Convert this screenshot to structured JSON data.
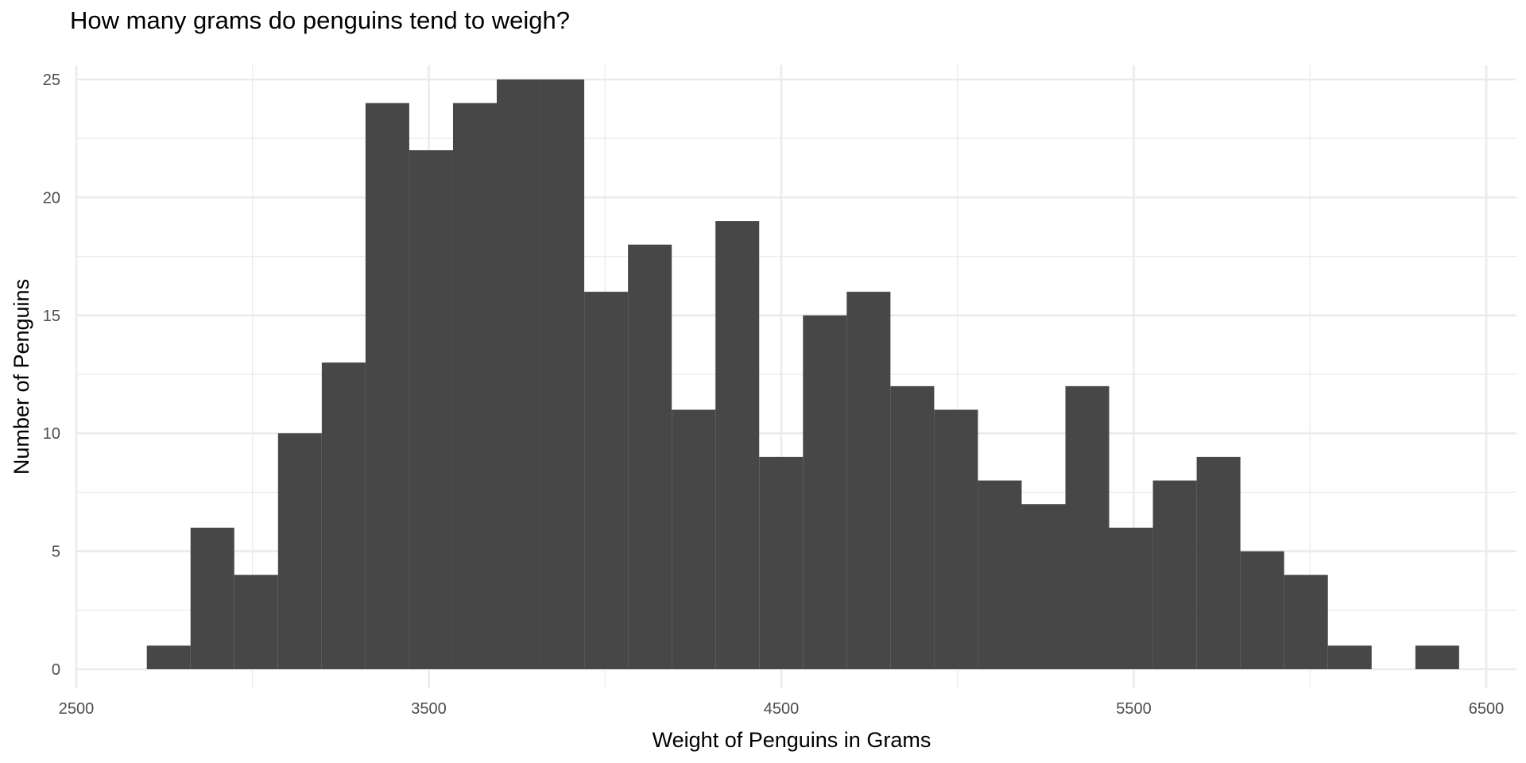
{
  "chart_data": {
    "type": "bar",
    "subtype": "histogram",
    "title": "How many grams do penguins tend to weigh?",
    "xlabel": "Weight of Penguins in Grams",
    "ylabel": "Number of Penguins",
    "xlim": [
      2500,
      6500
    ],
    "ylim": [
      0,
      25
    ],
    "x_ticks": [
      2500,
      3500,
      4500,
      5500,
      6500
    ],
    "y_ticks": [
      0,
      5,
      10,
      15,
      20,
      25
    ],
    "bin_width": 124.1,
    "bin_start": 2700,
    "values": [
      1,
      6,
      4,
      10,
      13,
      24,
      22,
      24,
      25,
      25,
      16,
      18,
      11,
      19,
      9,
      15,
      16,
      12,
      11,
      8,
      7,
      12,
      6,
      8,
      9,
      5,
      4,
      1,
      0,
      1
    ],
    "grid": true,
    "bar_color": "#474747",
    "grid_color": "#ebebeb",
    "legend": "none"
  }
}
